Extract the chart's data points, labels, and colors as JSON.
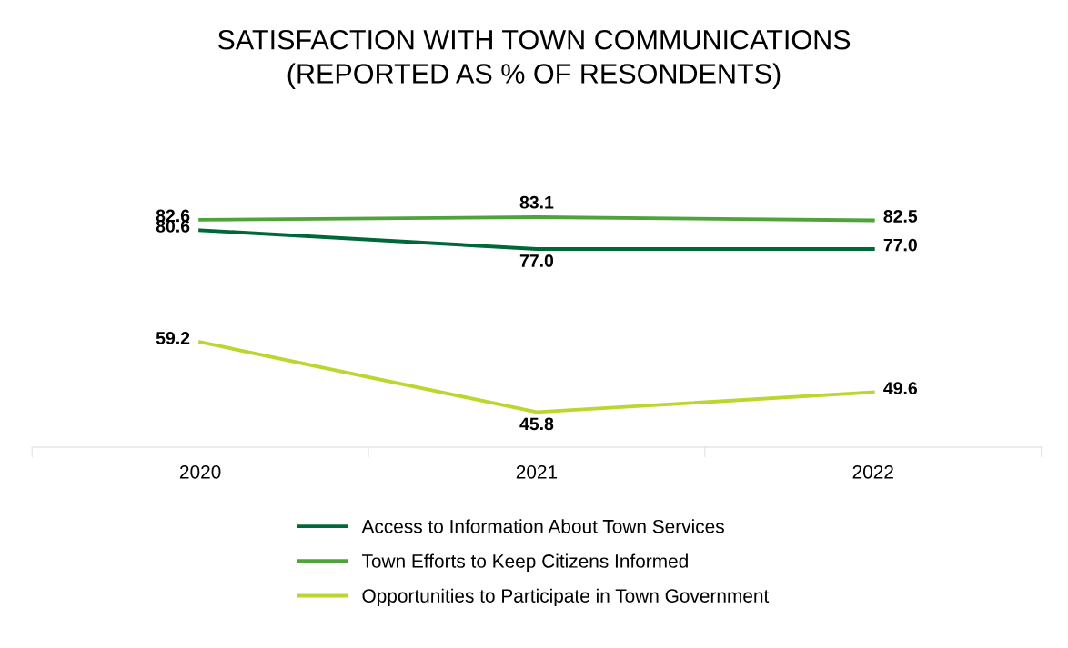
{
  "chart_data": {
    "type": "line",
    "title": "SATISFACTION WITH TOWN COMMUNICATIONS\n(REPORTED AS % OF RESONDENTS)",
    "categories": [
      "2020",
      "2021",
      "2022"
    ],
    "series": [
      {
        "name": "Access to Information About Town Services",
        "color": "#006838",
        "values": [
          80.6,
          77.0,
          77.0
        ],
        "value_labels": [
          "80.6",
          "77.0",
          "77.0"
        ]
      },
      {
        "name": "Town Efforts to Keep Citizens Informed",
        "color": "#4fa33b",
        "values": [
          82.6,
          83.1,
          82.5
        ],
        "value_labels": [
          "82.6",
          "83.1",
          "82.5"
        ]
      },
      {
        "name": "Opportunities to Participate in Town Government",
        "color": "#bcd630",
        "values": [
          59.2,
          45.8,
          49.6
        ],
        "value_labels": [
          "59.2",
          "45.8",
          "49.6"
        ]
      }
    ],
    "legend": "bottom",
    "grid": false,
    "marker": "none",
    "line_style": "solid"
  }
}
